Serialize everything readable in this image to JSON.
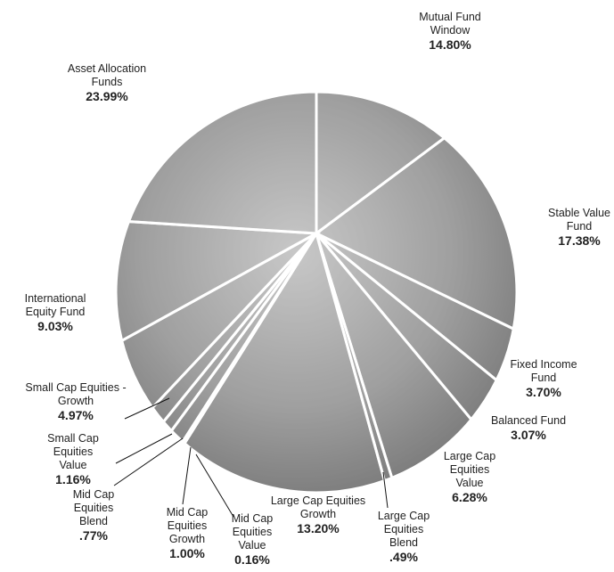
{
  "chart_data": {
    "type": "pie",
    "categories": [
      "Mutual Fund Window",
      "Stable Value Fund",
      "Fixed Income Fund",
      "Balanced Fund",
      "Large Cap Equities Value",
      "Large Cap Equities Blend",
      "Large Cap Equities Growth",
      "Mid Cap Equities Value",
      "Mid Cap Equities Growth",
      "Mid Cap Equities Blend",
      "Small Cap Equities Value",
      "Small Cap Equities - Growth",
      "International Equity Fund",
      "Asset Allocation Funds"
    ],
    "values": [
      14.8,
      17.38,
      3.7,
      3.07,
      6.28,
      0.49,
      13.2,
      0.16,
      1.0,
      0.77,
      1.16,
      4.97,
      9.03,
      23.99
    ],
    "value_labels": [
      "14.80%",
      "17.38%",
      "3.70%",
      "3.07%",
      "6.28%",
      ".49%",
      "13.20%",
      "0.16%",
      "1.00%",
      ".77%",
      "1.16%",
      "4.97%",
      "9.03%",
      "23.99%"
    ],
    "color": "#a8a8a8"
  }
}
